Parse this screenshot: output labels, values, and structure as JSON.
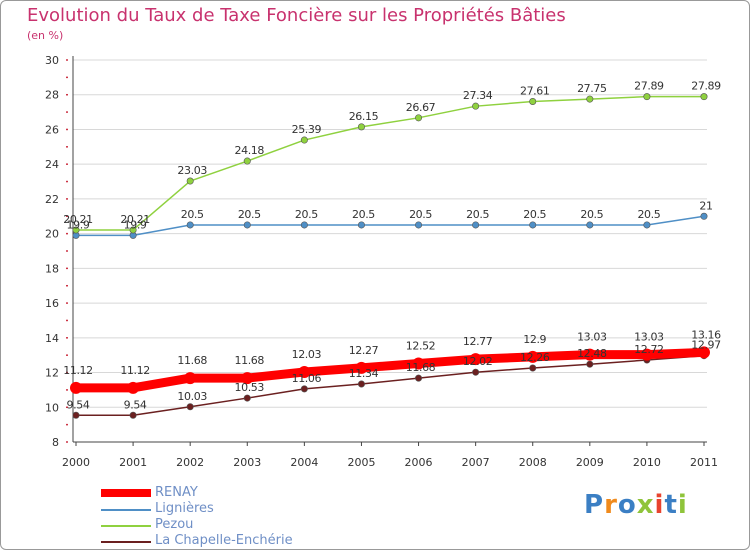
{
  "title": "Evolution du Taux de Taxe Foncière sur les Propriétés Bâties",
  "unit": "(en %)",
  "logo": "Proxiti",
  "colors": {
    "title": "#c8326e",
    "legend_text": "#6f8fc6",
    "grid": "#d8d8d8"
  },
  "chart_data": {
    "type": "line",
    "title": "Evolution du Taux de Taxe Foncière sur les Propriétés Bâties",
    "ylabel": "(en %)",
    "xlabel": "",
    "x": [
      "2000",
      "2001",
      "2002",
      "2003",
      "2004",
      "2005",
      "2006",
      "2007",
      "2008",
      "2009",
      "2010",
      "2011"
    ],
    "ylim": [
      8,
      30
    ],
    "yticks": [
      8,
      10,
      12,
      14,
      16,
      18,
      20,
      22,
      24,
      26,
      28,
      30
    ],
    "grid": true,
    "legend_position": "bottom-left",
    "series": [
      {
        "name": "RENAY",
        "color": "#ff0000",
        "values": [
          11.12,
          11.12,
          11.68,
          11.68,
          12.03,
          12.27,
          12.52,
          12.77,
          12.9,
          13.03,
          13.03,
          13.16
        ]
      },
      {
        "name": "Lignières",
        "color": "#4f8fc6",
        "values": [
          19.9,
          19.9,
          20.5,
          20.5,
          20.5,
          20.5,
          20.5,
          20.5,
          20.5,
          20.5,
          20.5,
          21
        ]
      },
      {
        "name": "Pezou",
        "color": "#8fd13f",
        "values": [
          20.21,
          20.21,
          23.03,
          24.18,
          25.39,
          26.15,
          26.67,
          27.34,
          27.61,
          27.75,
          27.89,
          27.89
        ]
      },
      {
        "name": "La Chapelle-Enchérie",
        "color": "#6b2020",
        "values": [
          9.54,
          9.54,
          10.03,
          10.53,
          11.06,
          11.34,
          11.68,
          12.02,
          12.26,
          12.48,
          12.72,
          12.97
        ]
      }
    ]
  }
}
